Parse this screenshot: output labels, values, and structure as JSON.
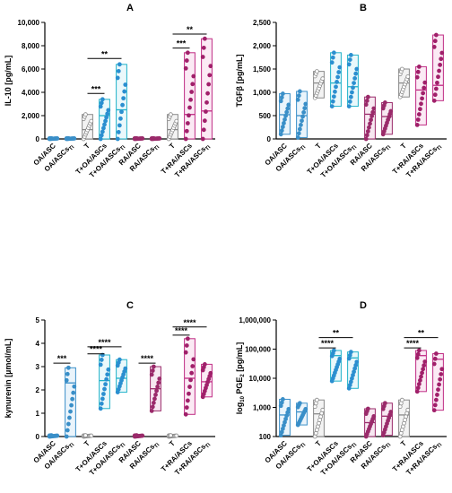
{
  "chart_data": [
    {
      "type": "box",
      "panel": "A",
      "ylabel": "IL-10 [pg/mL]",
      "ylim": [
        0,
        10000
      ],
      "yticks": [
        "0",
        "2,000",
        "4,000",
        "6,000",
        "8,000",
        "10,000"
      ],
      "categories": [
        "OA/ASC",
        "OA/ASCs<sub>TI</sub>",
        "T",
        "T+OA/ASCs",
        "T+OA/ASCs<sub>TI</sub>",
        "RA/ASC",
        "RA/ASCs<sub>TI</sub>",
        "T",
        "T+RA/ASCs",
        "T+RA/ASCs<sub>TI</sub>"
      ],
      "boxes": [
        {
          "min": 0,
          "max": 60,
          "mean": 20
        },
        {
          "min": 0,
          "max": 60,
          "mean": 20
        },
        {
          "min": 0,
          "max": 2100,
          "mean": 800
        },
        {
          "min": 0,
          "max": 3400,
          "mean": 2000
        },
        {
          "min": 0,
          "max": 6400,
          "mean": 2500
        },
        {
          "min": 0,
          "max": 60,
          "mean": 20
        },
        {
          "min": 0,
          "max": 60,
          "mean": 20
        },
        {
          "min": 0,
          "max": 2100,
          "mean": 800
        },
        {
          "min": 0,
          "max": 7400,
          "mean": 2100
        },
        {
          "min": 0,
          "max": 8600,
          "mean": 2400
        }
      ],
      "significance": [
        {
          "from": 2,
          "to": 3,
          "label": "***",
          "y": 3900
        },
        {
          "from": 2,
          "to": 4,
          "label": "**",
          "y": 6900
        },
        {
          "from": 7,
          "to": 8,
          "label": "***",
          "y": 7800
        },
        {
          "from": 7,
          "to": 9,
          "label": "**",
          "y": 9000
        }
      ]
    },
    {
      "type": "box",
      "panel": "B",
      "ylabel": "TGFβ [pg/mL]",
      "ylim": [
        0,
        2500
      ],
      "yticks": [
        "0",
        "500",
        "1,000",
        "1,500",
        "2,000",
        "2,500"
      ],
      "categories": [
        "OA/ASC",
        "OA/ASCs<sub>TI</sub>",
        "T",
        "T+OA/ASCs",
        "T+OA/ASCs<sub>TI</sub>",
        "RA/ASC",
        "RA/ASCs<sub>TI</sub>",
        "T",
        "T+RA/ASCs",
        "T+RA/ASCs<sub>TI</sub>"
      ],
      "boxes": [
        {
          "min": 100,
          "max": 970,
          "mean": 520
        },
        {
          "min": 30,
          "max": 1020,
          "mean": 500
        },
        {
          "min": 880,
          "max": 1450,
          "mean": 1200
        },
        {
          "min": 700,
          "max": 1850,
          "mean": 1200
        },
        {
          "min": 700,
          "max": 1800,
          "mean": 1120
        },
        {
          "min": 0,
          "max": 900,
          "mean": 530
        },
        {
          "min": 100,
          "max": 780,
          "mean": 480
        },
        {
          "min": 900,
          "max": 1500,
          "mean": 1200
        },
        {
          "min": 300,
          "max": 1550,
          "mean": 1050
        },
        {
          "min": 820,
          "max": 2230,
          "mean": 1150
        }
      ],
      "significance": []
    },
    {
      "type": "box",
      "panel": "C",
      "ylabel": "kynurenin [µmol/mL]",
      "ylim": [
        0,
        5
      ],
      "yticks": [
        "0",
        "1",
        "2",
        "3",
        "4",
        "5"
      ],
      "categories": [
        "OA/ASC",
        "OA/ASCs<sub>TI</sub>",
        "T",
        "T+OA/ASCs",
        "T+OA/ASCs<sub>TI</sub>",
        "RA/ASC",
        "RA/ASCs<sub>TI</sub>",
        "T",
        "T+RA/ASCs",
        "T+RA/ASCs<sub>TI</sub>"
      ],
      "boxes": [
        {
          "min": 0,
          "max": 0.05,
          "mean": 0.02
        },
        {
          "min": 0,
          "max": 2.95,
          "mean": 2.3
        },
        {
          "min": 0,
          "max": 0.05,
          "mean": 0.02
        },
        {
          "min": 1.2,
          "max": 3.5,
          "mean": 2.4
        },
        {
          "min": 1.9,
          "max": 3.3,
          "mean": 2.5
        },
        {
          "min": 0,
          "max": 0.05,
          "mean": 0.02
        },
        {
          "min": 1.1,
          "max": 3.0,
          "mean": 2.05
        },
        {
          "min": 0,
          "max": 0.05,
          "mean": 0.02
        },
        {
          "min": 0.95,
          "max": 4.2,
          "mean": 2.5
        },
        {
          "min": 1.7,
          "max": 3.1,
          "mean": 2.35
        }
      ],
      "significance": [
        {
          "from": 0,
          "to": 1,
          "label": "***",
          "y": 3.15
        },
        {
          "from": 2,
          "to": 3,
          "label": "****",
          "y": 3.55
        },
        {
          "from": 2,
          "to": 4,
          "label": "****",
          "y": 3.85
        },
        {
          "from": 5,
          "to": 6,
          "label": "****",
          "y": 3.15
        },
        {
          "from": 7,
          "to": 8,
          "label": "****",
          "y": 4.35
        },
        {
          "from": 7,
          "to": 9,
          "label": "****",
          "y": 4.7
        }
      ]
    },
    {
      "type": "box",
      "panel": "D",
      "ylabel": "log<sub>10</sub> PGE<sub>2</sub> [pg/mL]",
      "yscale": "log",
      "ylim": [
        100,
        1000000
      ],
      "yticks": [
        "100",
        "1,000",
        "10,000",
        "100,000",
        "1,000,000"
      ],
      "categories": [
        "OA/ASC",
        "OA/ASCs<sub>TI</sub>",
        "T",
        "T+OA/ASCs",
        "T+OA/ASCs<sub>TI</sub>",
        "RA/ASC",
        "RA/ASCs<sub>TI</sub>",
        "T",
        "T+RA/ASCs",
        "T+RA/ASCs<sub>TI</sub>"
      ],
      "boxes": [
        {
          "min": 110,
          "max": 1900,
          "mean": 550
        },
        {
          "min": 250,
          "max": 1400,
          "mean": 700
        },
        {
          "min": 100,
          "max": 1800,
          "mean": 600
        },
        {
          "min": 8000,
          "max": 90000,
          "mean": 60000
        },
        {
          "min": 4500,
          "max": 80000,
          "mean": 50000
        },
        {
          "min": 100,
          "max": 900,
          "mean": 300
        },
        {
          "min": 110,
          "max": 1400,
          "mean": 500
        },
        {
          "min": 100,
          "max": 1800,
          "mean": 550
        },
        {
          "min": 3500,
          "max": 90000,
          "mean": 60000
        },
        {
          "min": 800,
          "max": 70000,
          "mean": 45000
        }
      ],
      "significance": [
        {
          "from": 3,
          "to": 3,
          "label": "****",
          "y": 110000,
          "wide_from": 2
        },
        {
          "from": 2,
          "to": 4,
          "label": "**",
          "y": 250000
        },
        {
          "from": 7,
          "to": 8,
          "label": "****",
          "y": 110000
        },
        {
          "from": 7,
          "to": 9,
          "label": "**",
          "y": 250000
        }
      ]
    }
  ],
  "colors": {
    "OA/ASC": "#3a8fc8",
    "OA/ASCs_TI": "#3a8fc8",
    "T": "#8a8a8a",
    "T+OA": "#3aa0d8",
    "OA_box": "#1fb2c9",
    "RA": "#9a2a6a",
    "RA_box": "#c02c84"
  }
}
